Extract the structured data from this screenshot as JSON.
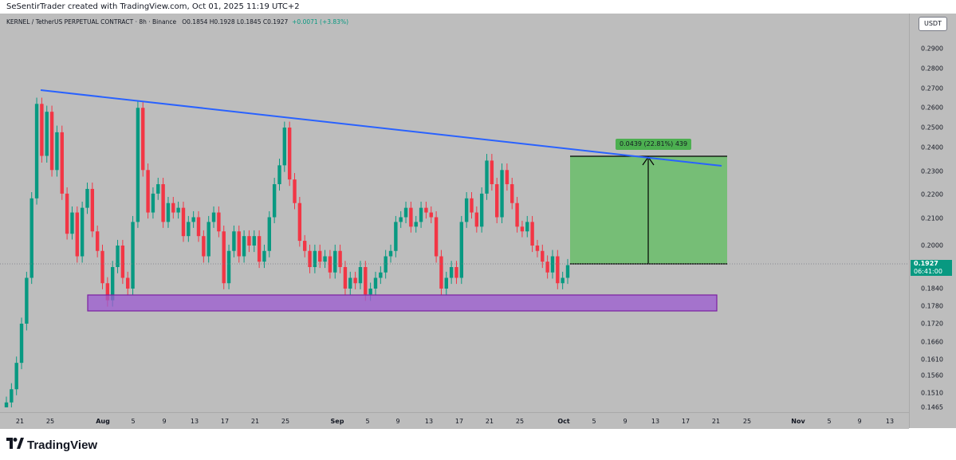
{
  "attribution": "SeSentirTrader created with TradingView.com, Oct 01, 2025 11:19 UTC+2",
  "symbol": {
    "title": "KERNEL / TetherUS PERPETUAL CONTRACT · 8h · Binance",
    "ohlc": "O0.1854 H0.1928 L0.1845 C0.1927",
    "change": "+0.0071 (+3.83%)"
  },
  "currency": "USDT",
  "last_price": {
    "value": "0.1927",
    "countdown": "06:41:00",
    "color": "#089981"
  },
  "measure": {
    "label": "0.0439 (22.81%) 439"
  },
  "footer": {
    "brand": "TradingView"
  },
  "colors": {
    "up": "#089981",
    "down": "#f23645",
    "trendline": "#2962ff",
    "zone_fill": "#9c5bd1",
    "zone_border": "#7b1fa2",
    "target_fill": "#5fbf5f"
  },
  "chart_data": {
    "type": "candlestick",
    "title": "KERNEL / TetherUS PERPETUAL CONTRACT · 8h · Binance",
    "y_ticks": [
      "0.2900",
      "0.2800",
      "0.2700",
      "0.2600",
      "0.2500",
      "0.2400",
      "0.2300",
      "0.2200",
      "0.2100",
      "0.2000",
      "0.1840",
      "0.1780",
      "0.1720",
      "0.1660",
      "0.1610",
      "0.1560",
      "0.1510",
      "0.1465"
    ],
    "x_ticks": [
      {
        "label": "21",
        "bold": false
      },
      {
        "label": "25",
        "bold": false
      },
      {
        "label": "Aug",
        "bold": true
      },
      {
        "label": "5",
        "bold": false
      },
      {
        "label": "9",
        "bold": false
      },
      {
        "label": "13",
        "bold": false
      },
      {
        "label": "17",
        "bold": false
      },
      {
        "label": "21",
        "bold": false
      },
      {
        "label": "25",
        "bold": false
      },
      {
        "label": "Sep",
        "bold": true
      },
      {
        "label": "5",
        "bold": false
      },
      {
        "label": "9",
        "bold": false
      },
      {
        "label": "13",
        "bold": false
      },
      {
        "label": "17",
        "bold": false
      },
      {
        "label": "21",
        "bold": false
      },
      {
        "label": "25",
        "bold": false
      },
      {
        "label": "Oct",
        "bold": true
      },
      {
        "label": "5",
        "bold": false
      },
      {
        "label": "9",
        "bold": false
      },
      {
        "label": "13",
        "bold": false
      },
      {
        "label": "17",
        "bold": false
      },
      {
        "label": "21",
        "bold": false
      },
      {
        "label": "25",
        "bold": false
      },
      {
        "label": "Nov",
        "bold": true
      },
      {
        "label": "5",
        "bold": false
      },
      {
        "label": "9",
        "bold": false
      },
      {
        "label": "13",
        "bold": false
      }
    ],
    "price_path": [
      0.148,
      0.152,
      0.16,
      0.172,
      0.188,
      0.22,
      0.262,
      0.238,
      0.258,
      0.232,
      0.248,
      0.222,
      0.205,
      0.214,
      0.196,
      0.216,
      0.224,
      0.206,
      0.198,
      0.186,
      0.18,
      0.192,
      0.2,
      0.188,
      0.184,
      0.21,
      0.26,
      0.232,
      0.214,
      0.222,
      0.226,
      0.21,
      0.218,
      0.214,
      0.216,
      0.204,
      0.21,
      0.212,
      0.204,
      0.196,
      0.21,
      0.214,
      0.206,
      0.186,
      0.198,
      0.206,
      0.196,
      0.204,
      0.2,
      0.204,
      0.194,
      0.198,
      0.212,
      0.226,
      0.234,
      0.25,
      0.228,
      0.218,
      0.202,
      0.198,
      0.192,
      0.198,
      0.194,
      0.196,
      0.19,
      0.198,
      0.192,
      0.184,
      0.188,
      0.186,
      0.192,
      0.182,
      0.184,
      0.188,
      0.19,
      0.196,
      0.198,
      0.21,
      0.212,
      0.216,
      0.208,
      0.21,
      0.216,
      0.214,
      0.212,
      0.196,
      0.184,
      0.188,
      0.192,
      0.188,
      0.21,
      0.22,
      0.214,
      0.208,
      0.222,
      0.236,
      0.226,
      0.212,
      0.232,
      0.226,
      0.218,
      0.208,
      0.206,
      0.21,
      0.2,
      0.198,
      0.194,
      0.19,
      0.196,
      0.186,
      0.188,
      0.1927
    ],
    "resistance_trendline": {
      "from": {
        "x": "Jul 22",
        "y": 0.2685
      },
      "to": {
        "x": "Oct 22",
        "y": 0.233
      }
    },
    "support_zone": {
      "y_low": 0.1765,
      "y_high": 0.181,
      "x_start": "Jul 29",
      "x_end": "Oct 22"
    },
    "target_box": {
      "y_low": 0.1927,
      "y_high": 0.2366,
      "x_start": "Oct 01",
      "x_end": "Oct 22"
    }
  }
}
